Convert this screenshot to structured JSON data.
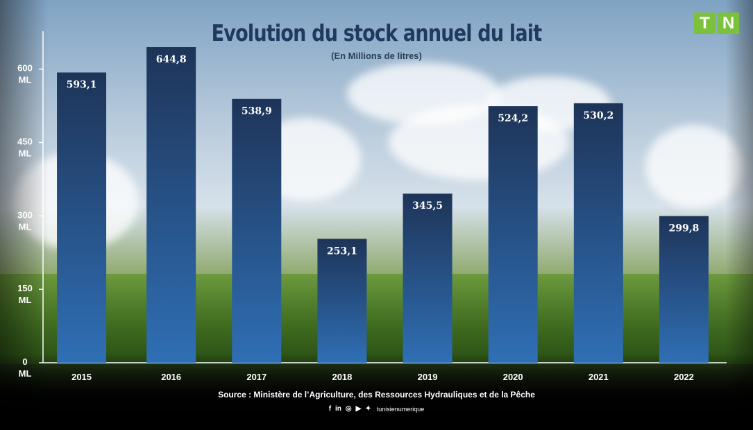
{
  "title": "Evolution du stock annuel du lait",
  "subtitle": "(En Millions de litres)",
  "logo": {
    "letters": [
      "T",
      "N"
    ],
    "color": "#7cc13b"
  },
  "source": "Source : Ministère de l’Agriculture, des Ressources Hydrauliques et de la Pêche",
  "social": {
    "icons": [
      {
        "name": "facebook-icon",
        "glyph": "f"
      },
      {
        "name": "linkedin-icon",
        "glyph": "in"
      },
      {
        "name": "instagram-icon",
        "glyph": "◎"
      },
      {
        "name": "youtube-icon",
        "glyph": "▶"
      },
      {
        "name": "twitter-icon",
        "glyph": "✦"
      }
    ],
    "handle": "tunisienumerique"
  },
  "chart_data": {
    "type": "bar",
    "title": "Evolution du stock annuel du lait",
    "subtitle": "(En Millions de litres)",
    "categories": [
      "2015",
      "2016",
      "2017",
      "2018",
      "2019",
      "2020",
      "2021",
      "2022"
    ],
    "values": [
      593.1,
      644.8,
      538.9,
      253.1,
      345.5,
      524.2,
      530.2,
      299.8
    ],
    "value_labels": [
      "593,1",
      "644,8",
      "538,9",
      "253,1",
      "345,5",
      "524,2",
      "530,2",
      "299,8"
    ],
    "yticks": [
      0,
      150,
      300,
      450,
      600
    ],
    "ytick_unit": "ML",
    "ylim": [
      0,
      710
    ],
    "bar_color_top": "#1e3458",
    "bar_color_bottom": "#2f6fb5",
    "grid": false
  }
}
